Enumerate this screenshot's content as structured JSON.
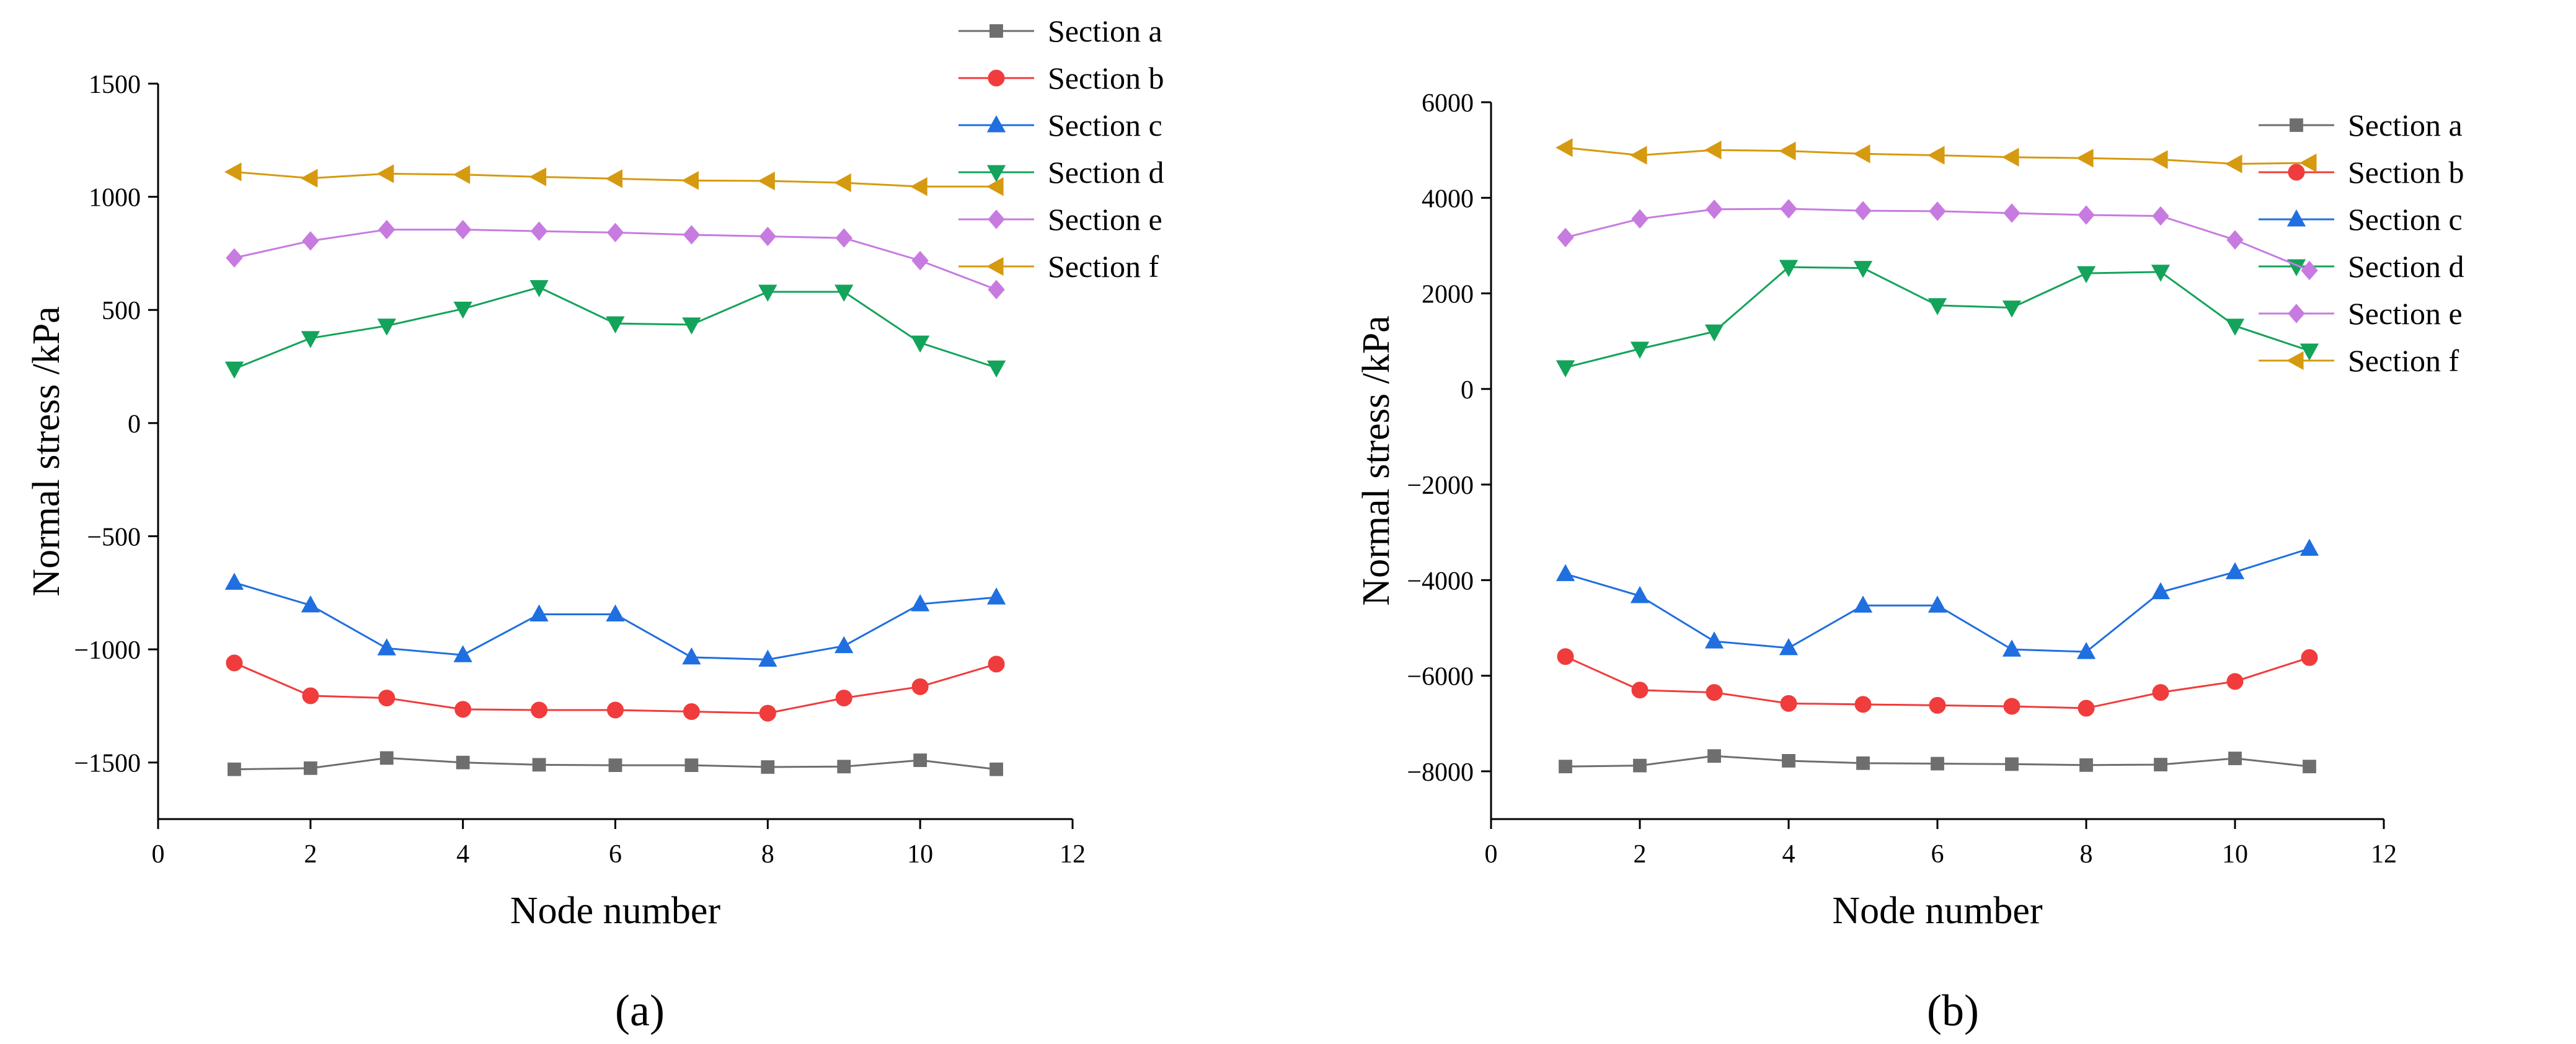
{
  "chart_data": [
    {
      "type": "line",
      "panel_label": "(a)",
      "xlabel": "Node number",
      "ylabel": "Normal stress /kPa",
      "xlim": [
        0,
        12
      ],
      "ylim": [
        -1750,
        1500
      ],
      "xticks": [
        0,
        2,
        4,
        6,
        8,
        10,
        12
      ],
      "yticks": [
        -1500,
        -1000,
        -500,
        0,
        500,
        1000,
        1500
      ],
      "legend_position": "top-right-outside",
      "x": [
        1,
        2,
        3,
        4,
        5,
        6,
        7,
        8,
        9,
        10,
        11
      ],
      "series": [
        {
          "name": "Section a",
          "color": "#6e6e6e",
          "marker": "square",
          "values": [
            -1530,
            -1525,
            -1480,
            -1500,
            -1510,
            -1512,
            -1512,
            -1520,
            -1518,
            -1490,
            -1530
          ]
        },
        {
          "name": "Section b",
          "color": "#f03c3c",
          "marker": "circle",
          "values": [
            -1060,
            -1205,
            -1215,
            -1265,
            -1268,
            -1268,
            -1275,
            -1282,
            -1215,
            -1165,
            -1065
          ]
        },
        {
          "name": "Section c",
          "color": "#1f6fe0",
          "marker": "triangle-up",
          "values": [
            -705,
            -805,
            -995,
            -1025,
            -845,
            -845,
            -1035,
            -1045,
            -985,
            -800,
            -770
          ]
        },
        {
          "name": "Section d",
          "color": "#14a35a",
          "marker": "triangle-down",
          "values": [
            240,
            375,
            430,
            505,
            600,
            440,
            435,
            580,
            580,
            355,
            245
          ]
        },
        {
          "name": "Section e",
          "color": "#c77be0",
          "marker": "diamond",
          "values": [
            730,
            805,
            855,
            855,
            848,
            842,
            832,
            825,
            818,
            718,
            590
          ]
        },
        {
          "name": "Section f",
          "color": "#d69a10",
          "marker": "triangle-left",
          "values": [
            1110,
            1082,
            1102,
            1098,
            1088,
            1080,
            1072,
            1070,
            1062,
            1045,
            1045
          ]
        }
      ]
    },
    {
      "type": "line",
      "panel_label": "(b)",
      "xlabel": "Node number",
      "ylabel": "Normal stress /kPa",
      "xlim": [
        0,
        12
      ],
      "ylim": [
        -9000,
        6000
      ],
      "xticks": [
        0,
        2,
        4,
        6,
        8,
        10,
        12
      ],
      "yticks": [
        -8000,
        -6000,
        -4000,
        -2000,
        0,
        2000,
        4000,
        6000
      ],
      "legend_position": "right-inside",
      "x": [
        1,
        2,
        3,
        4,
        5,
        6,
        7,
        8,
        9,
        10,
        11
      ],
      "series": [
        {
          "name": "Section a",
          "color": "#6e6e6e",
          "marker": "square",
          "values": [
            -7900,
            -7880,
            -7680,
            -7780,
            -7830,
            -7840,
            -7850,
            -7870,
            -7860,
            -7730,
            -7900
          ]
        },
        {
          "name": "Section b",
          "color": "#f03c3c",
          "marker": "circle",
          "values": [
            -5600,
            -6300,
            -6350,
            -6580,
            -6600,
            -6620,
            -6640,
            -6680,
            -6350,
            -6120,
            -5620
          ]
        },
        {
          "name": "Section c",
          "color": "#1f6fe0",
          "marker": "triangle-up",
          "values": [
            -3870,
            -4330,
            -5280,
            -5420,
            -4530,
            -4530,
            -5450,
            -5500,
            -4250,
            -3830,
            -3340
          ]
        },
        {
          "name": "Section d",
          "color": "#14a35a",
          "marker": "triangle-down",
          "values": [
            450,
            840,
            1200,
            2550,
            2530,
            1750,
            1700,
            2420,
            2450,
            1320,
            800
          ]
        },
        {
          "name": "Section e",
          "color": "#c77be0",
          "marker": "diamond",
          "values": [
            3170,
            3560,
            3760,
            3770,
            3730,
            3720,
            3680,
            3640,
            3620,
            3120,
            2480
          ]
        },
        {
          "name": "Section f",
          "color": "#d69a10",
          "marker": "triangle-left",
          "values": [
            5050,
            4890,
            5000,
            4980,
            4920,
            4890,
            4850,
            4830,
            4800,
            4710,
            4730
          ]
        }
      ]
    }
  ]
}
